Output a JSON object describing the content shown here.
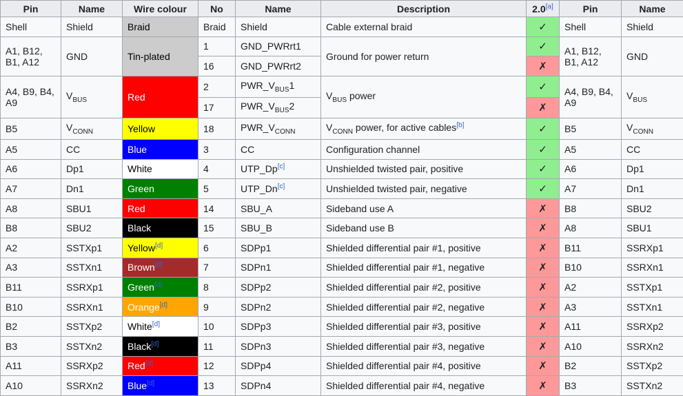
{
  "colors": {
    "header_bg": "#eaecf0",
    "cell_bg": "#f8f9fa",
    "border": "#a2a9b1",
    "yes_bg": "#90ee90",
    "no_bg": "#ff9999",
    "link": "#3366cc"
  },
  "table": {
    "header": [
      {
        "label": "Pin"
      },
      {
        "label": "Name"
      },
      {
        "label": "Wire colour"
      },
      {
        "label": "No"
      },
      {
        "label": "Name"
      },
      {
        "label": "Description"
      },
      {
        "label": "2.0",
        "ref": "[a]"
      },
      {
        "label": "Pin"
      },
      {
        "label": "Name"
      }
    ],
    "rows": [
      {
        "pin": "Shell",
        "name": [
          {
            "t": "Shield"
          }
        ],
        "wire": {
          "parts": [
            {
              "t": "Braid"
            }
          ],
          "bg": "#cccccc",
          "fg": "#000000"
        },
        "no": "Braid",
        "signal": [
          {
            "t": "Shield"
          }
        ],
        "desc": [
          {
            "t": "Cable external braid"
          }
        ],
        "v20": {
          "mark": "✓",
          "bg": "#90ee90"
        },
        "pin_r": "Shell",
        "name_r": [
          {
            "t": "Shield"
          }
        ]
      },
      {
        "pin": "A1, B12, B1, A12",
        "name": [
          {
            "t": "GND"
          }
        ],
        "wire": {
          "parts": [
            {
              "t": "Tin-plated"
            }
          ],
          "bg": "#cccccc",
          "fg": "#000000"
        },
        "no": "1",
        "signal": [
          {
            "t": "GND_PWRrt1"
          }
        ],
        "desc": [
          {
            "t": "Ground for power return"
          }
        ],
        "v20": {
          "mark": "✓",
          "bg": "#90ee90"
        },
        "pin_r": "A1, B12, B1, A12",
        "name_r": [
          {
            "t": "GND"
          }
        ]
      },
      {
        "no": "16",
        "signal": [
          {
            "t": "GND_PWRrt2"
          }
        ],
        "v20": {
          "mark": "✗",
          "bg": "#ff9999"
        }
      },
      {
        "pin": "A4, B9, B4, A9",
        "name": [
          {
            "t": "V"
          },
          {
            "sub": "BUS"
          }
        ],
        "wire": {
          "parts": [
            {
              "t": "Red"
            }
          ],
          "bg": "#ff0000",
          "fg": "#ffffff"
        },
        "no": "2",
        "signal": [
          {
            "t": "PWR_V"
          },
          {
            "sub": "BUS"
          },
          {
            "t": "1"
          }
        ],
        "desc": [
          {
            "t": "V"
          },
          {
            "sub": "BUS"
          },
          {
            "t": " power"
          }
        ],
        "v20": {
          "mark": "✓",
          "bg": "#90ee90"
        },
        "pin_r": "A4, B9, B4, A9",
        "name_r": [
          {
            "t": "V"
          },
          {
            "sub": "BUS"
          }
        ]
      },
      {
        "no": "17",
        "signal": [
          {
            "t": "PWR_V"
          },
          {
            "sub": "BUS"
          },
          {
            "t": "2"
          }
        ],
        "v20": {
          "mark": "✗",
          "bg": "#ff9999"
        }
      },
      {
        "pin": "B5",
        "name": [
          {
            "t": "V"
          },
          {
            "sub": "CONN"
          }
        ],
        "wire": {
          "parts": [
            {
              "t": "Yellow"
            }
          ],
          "bg": "#ffff00",
          "fg": "#000000"
        },
        "no": "18",
        "signal": [
          {
            "t": "PWR_V"
          },
          {
            "sub": "CONN"
          }
        ],
        "desc": [
          {
            "t": "V"
          },
          {
            "sub": "CONN"
          },
          {
            "t": " power, for active cables"
          },
          {
            "sup": "[b]"
          }
        ],
        "v20": {
          "mark": "✓",
          "bg": "#90ee90"
        },
        "pin_r": "B5",
        "name_r": [
          {
            "t": "V"
          },
          {
            "sub": "CONN"
          }
        ]
      },
      {
        "pin": "A5",
        "name": [
          {
            "t": "CC"
          }
        ],
        "wire": {
          "parts": [
            {
              "t": "Blue"
            }
          ],
          "bg": "#0000ff",
          "fg": "#ffffff"
        },
        "no": "3",
        "signal": [
          {
            "t": "CC"
          }
        ],
        "desc": [
          {
            "t": "Configuration channel"
          }
        ],
        "v20": {
          "mark": "✓",
          "bg": "#90ee90"
        },
        "pin_r": "A5",
        "name_r": [
          {
            "t": "CC"
          }
        ]
      },
      {
        "pin": "A6",
        "name": [
          {
            "t": "Dp1"
          }
        ],
        "wire": {
          "parts": [
            {
              "t": "White"
            }
          ],
          "bg": "#ffffff",
          "fg": "#000000"
        },
        "no": "4",
        "signal": [
          {
            "t": "UTP_Dp"
          },
          {
            "sup": "[c]"
          }
        ],
        "desc": [
          {
            "t": "Unshielded twisted pair, positive"
          }
        ],
        "v20": {
          "mark": "✓",
          "bg": "#90ee90"
        },
        "pin_r": "A6",
        "name_r": [
          {
            "t": "Dp1"
          }
        ]
      },
      {
        "pin": "A7",
        "name": [
          {
            "t": "Dn1"
          }
        ],
        "wire": {
          "parts": [
            {
              "t": "Green"
            }
          ],
          "bg": "#008000",
          "fg": "#ffffff"
        },
        "no": "5",
        "signal": [
          {
            "t": "UTP_Dn"
          },
          {
            "sup": "[c]"
          }
        ],
        "desc": [
          {
            "t": "Unshielded twisted pair, negative"
          }
        ],
        "v20": {
          "mark": "✓",
          "bg": "#90ee90"
        },
        "pin_r": "A7",
        "name_r": [
          {
            "t": "Dn1"
          }
        ]
      },
      {
        "pin": "A8",
        "name": [
          {
            "t": "SBU1"
          }
        ],
        "wire": {
          "parts": [
            {
              "t": "Red"
            }
          ],
          "bg": "#ff0000",
          "fg": "#ffffff"
        },
        "no": "14",
        "signal": [
          {
            "t": "SBU_A"
          }
        ],
        "desc": [
          {
            "t": "Sideband use A"
          }
        ],
        "v20": {
          "mark": "✗",
          "bg": "#ff9999"
        },
        "pin_r": "B8",
        "name_r": [
          {
            "t": "SBU2"
          }
        ]
      },
      {
        "pin": "B8",
        "name": [
          {
            "t": "SBU2"
          }
        ],
        "wire": {
          "parts": [
            {
              "t": "Black"
            }
          ],
          "bg": "#000000",
          "fg": "#ffffff"
        },
        "no": "15",
        "signal": [
          {
            "t": "SBU_B"
          }
        ],
        "desc": [
          {
            "t": "Sideband use B"
          }
        ],
        "v20": {
          "mark": "✗",
          "bg": "#ff9999"
        },
        "pin_r": "A8",
        "name_r": [
          {
            "t": "SBU1"
          }
        ]
      },
      {
        "pin": "A2",
        "name": [
          {
            "t": "SSTXp1"
          }
        ],
        "wire": {
          "parts": [
            {
              "t": "Yellow"
            },
            {
              "sup": "[d]"
            }
          ],
          "bg": "#ffff00",
          "fg": "#000000"
        },
        "no": "6",
        "signal": [
          {
            "t": "SDPp1"
          }
        ],
        "desc": [
          {
            "t": "Shielded differential pair #1, positive"
          }
        ],
        "v20": {
          "mark": "✗",
          "bg": "#ff9999"
        },
        "pin_r": "B11",
        "name_r": [
          {
            "t": "SSRXp1"
          }
        ]
      },
      {
        "pin": "A3",
        "name": [
          {
            "t": "SSTXn1"
          }
        ],
        "wire": {
          "parts": [
            {
              "t": "Brown"
            },
            {
              "sup": "[d]"
            }
          ],
          "bg": "#a52a2a",
          "fg": "#ffffff"
        },
        "no": "7",
        "signal": [
          {
            "t": "SDPn1"
          }
        ],
        "desc": [
          {
            "t": "Shielded differential pair #1, negative"
          }
        ],
        "v20": {
          "mark": "✗",
          "bg": "#ff9999"
        },
        "pin_r": "B10",
        "name_r": [
          {
            "t": "SSRXn1"
          }
        ]
      },
      {
        "pin": "B11",
        "name": [
          {
            "t": "SSRXp1"
          }
        ],
        "wire": {
          "parts": [
            {
              "t": "Green"
            },
            {
              "sup": "[d]"
            }
          ],
          "bg": "#008000",
          "fg": "#ffffff"
        },
        "no": "8",
        "signal": [
          {
            "t": "SDPp2"
          }
        ],
        "desc": [
          {
            "t": "Shielded differential pair #2, positive"
          }
        ],
        "v20": {
          "mark": "✗",
          "bg": "#ff9999"
        },
        "pin_r": "A2",
        "name_r": [
          {
            "t": "SSTXp1"
          }
        ]
      },
      {
        "pin": "B10",
        "name": [
          {
            "t": "SSRXn1"
          }
        ],
        "wire": {
          "parts": [
            {
              "t": "Orange"
            },
            {
              "sup": "[d]"
            }
          ],
          "bg": "#ffa500",
          "fg": "#ffffff"
        },
        "no": "9",
        "signal": [
          {
            "t": "SDPn2"
          }
        ],
        "desc": [
          {
            "t": "Shielded differential pair #2, negative"
          }
        ],
        "v20": {
          "mark": "✗",
          "bg": "#ff9999"
        },
        "pin_r": "A3",
        "name_r": [
          {
            "t": "SSTXn1"
          }
        ]
      },
      {
        "pin": "B2",
        "name": [
          {
            "t": "SSTXp2"
          }
        ],
        "wire": {
          "parts": [
            {
              "t": "White"
            },
            {
              "sup": "[d]"
            }
          ],
          "bg": "#ffffff",
          "fg": "#000000"
        },
        "no": "10",
        "signal": [
          {
            "t": "SDPp3"
          }
        ],
        "desc": [
          {
            "t": "Shielded differential pair #3, positive"
          }
        ],
        "v20": {
          "mark": "✗",
          "bg": "#ff9999"
        },
        "pin_r": "A11",
        "name_r": [
          {
            "t": "SSRXp2"
          }
        ]
      },
      {
        "pin": "B3",
        "name": [
          {
            "t": "SSTXn2"
          }
        ],
        "wire": {
          "parts": [
            {
              "t": "Black"
            },
            {
              "sup": "[d]"
            }
          ],
          "bg": "#000000",
          "fg": "#ffffff"
        },
        "no": "11",
        "signal": [
          {
            "t": "SDPn3"
          }
        ],
        "desc": [
          {
            "t": "Shielded differential pair #3, negative"
          }
        ],
        "v20": {
          "mark": "✗",
          "bg": "#ff9999"
        },
        "pin_r": "A10",
        "name_r": [
          {
            "t": "SSRXn2"
          }
        ]
      },
      {
        "pin": "A11",
        "name": [
          {
            "t": "SSRXp2"
          }
        ],
        "wire": {
          "parts": [
            {
              "t": "Red"
            },
            {
              "sup": "[d]"
            }
          ],
          "bg": "#ff0000",
          "fg": "#ffffff"
        },
        "no": "12",
        "signal": [
          {
            "t": "SDPp4"
          }
        ],
        "desc": [
          {
            "t": "Shielded differential pair #4, positive"
          }
        ],
        "v20": {
          "mark": "✗",
          "bg": "#ff9999"
        },
        "pin_r": "B2",
        "name_r": [
          {
            "t": "SSTXp2"
          }
        ]
      },
      {
        "pin": "A10",
        "name": [
          {
            "t": "SSRXn2"
          }
        ],
        "wire": {
          "parts": [
            {
              "t": "Blue"
            },
            {
              "sup": "[d]"
            }
          ],
          "bg": "#0000ff",
          "fg": "#ffffff"
        },
        "no": "13",
        "signal": [
          {
            "t": "SDPn4"
          }
        ],
        "desc": [
          {
            "t": "Shielded differential pair #4, negative"
          }
        ],
        "v20": {
          "mark": "✗",
          "bg": "#ff9999"
        },
        "pin_r": "B3",
        "name_r": [
          {
            "t": "SSTXn2"
          }
        ]
      }
    ]
  }
}
